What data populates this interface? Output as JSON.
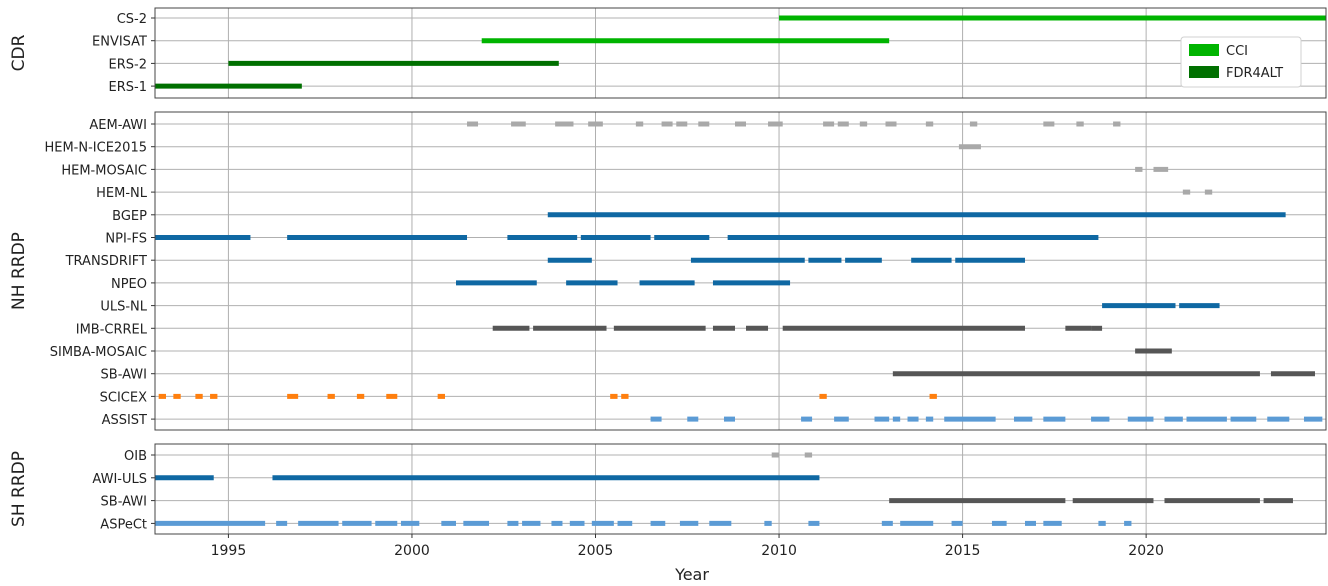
{
  "chart_data": {
    "type": "timeline",
    "xlabel": "Year",
    "xlim": [
      1993.0,
      2024.9
    ],
    "xticks": [
      1995,
      2000,
      2005,
      2010,
      2015,
      2020
    ],
    "grid": true,
    "colors": {
      "cci": "#00b400",
      "fdr4alt": "#007000",
      "blue": "#0f68a3",
      "grey": "#565656",
      "lightgrey": "#a9a9a9",
      "orange": "#ff7f0e",
      "lightblue": "#5b9bd5"
    },
    "legend": {
      "placement": "top-right",
      "entries": [
        {
          "label": "CCI",
          "color": "#00b400"
        },
        {
          "label": "FDR4ALT",
          "color": "#007000"
        }
      ]
    },
    "panels": [
      {
        "ylabel": "CDR",
        "rows": [
          {
            "label": "CS-2",
            "color": "#00b400",
            "segments": [
              [
                2010.0,
                2024.9
              ]
            ]
          },
          {
            "label": "ENVISAT",
            "color": "#00b400",
            "segments": [
              [
                2001.9,
                2013.0
              ]
            ]
          },
          {
            "label": "ERS-2",
            "color": "#007000",
            "segments": [
              [
                1995.0,
                2004.0
              ]
            ]
          },
          {
            "label": "ERS-1",
            "color": "#007000",
            "segments": [
              [
                1993.0,
                1997.0
              ]
            ]
          }
        ]
      },
      {
        "ylabel": "NH RRDP",
        "rows": [
          {
            "label": "AEM-AWI",
            "color": "#a9a9a9",
            "segments": [
              [
                2001.5,
                2001.8
              ],
              [
                2002.7,
                2003.1
              ],
              [
                2003.9,
                2004.4
              ],
              [
                2004.8,
                2005.2
              ],
              [
                2006.1,
                2006.3
              ],
              [
                2006.8,
                2007.1
              ],
              [
                2007.2,
                2007.5
              ],
              [
                2007.8,
                2008.1
              ],
              [
                2008.8,
                2009.1
              ],
              [
                2009.7,
                2010.1
              ],
              [
                2011.2,
                2011.5
              ],
              [
                2011.6,
                2011.9
              ],
              [
                2012.2,
                2012.4
              ],
              [
                2012.9,
                2013.2
              ],
              [
                2014.0,
                2014.2
              ],
              [
                2015.2,
                2015.4
              ],
              [
                2017.2,
                2017.5
              ],
              [
                2018.1,
                2018.3
              ],
              [
                2019.1,
                2019.3
              ]
            ]
          },
          {
            "label": "HEM-N-ICE2015",
            "color": "#a9a9a9",
            "segments": [
              [
                2014.9,
                2015.5
              ]
            ]
          },
          {
            "label": "HEM-MOSAIC",
            "color": "#a9a9a9",
            "segments": [
              [
                2019.7,
                2019.9
              ],
              [
                2020.2,
                2020.6
              ]
            ]
          },
          {
            "label": "HEM-NL",
            "color": "#a9a9a9",
            "segments": [
              [
                2021.0,
                2021.2
              ],
              [
                2021.6,
                2021.8
              ]
            ]
          },
          {
            "label": "BGEP",
            "color": "#0f68a3",
            "segments": [
              [
                2003.7,
                2023.8
              ]
            ]
          },
          {
            "label": "NPI-FS",
            "color": "#0f68a3",
            "segments": [
              [
                1993.0,
                1995.6
              ],
              [
                1996.6,
                2001.5
              ],
              [
                2002.6,
                2004.5
              ],
              [
                2004.6,
                2006.5
              ],
              [
                2006.6,
                2008.1
              ],
              [
                2008.6,
                2018.7
              ]
            ]
          },
          {
            "label": "TRANSDRIFT",
            "color": "#0f68a3",
            "segments": [
              [
                2003.7,
                2004.9
              ],
              [
                2007.6,
                2010.7
              ],
              [
                2010.8,
                2011.7
              ],
              [
                2011.8,
                2012.8
              ],
              [
                2013.6,
                2014.7
              ],
              [
                2014.8,
                2016.7
              ]
            ]
          },
          {
            "label": "NPEO",
            "color": "#0f68a3",
            "segments": [
              [
                2001.2,
                2003.4
              ],
              [
                2004.2,
                2005.6
              ],
              [
                2006.2,
                2007.7
              ],
              [
                2008.2,
                2010.3
              ]
            ]
          },
          {
            "label": "ULS-NL",
            "color": "#0f68a3",
            "segments": [
              [
                2018.8,
                2020.8
              ],
              [
                2020.9,
                2022.0
              ]
            ]
          },
          {
            "label": "IMB-CRREL",
            "color": "#565656",
            "segments": [
              [
                2002.2,
                2003.2
              ],
              [
                2003.3,
                2005.3
              ],
              [
                2005.5,
                2008.0
              ],
              [
                2008.2,
                2008.8
              ],
              [
                2009.1,
                2009.7
              ],
              [
                2010.1,
                2016.7
              ],
              [
                2017.8,
                2018.5
              ],
              [
                2018.5,
                2018.8
              ]
            ]
          },
          {
            "label": "SIMBA-MOSAIC",
            "color": "#565656",
            "segments": [
              [
                2019.7,
                2020.7
              ]
            ]
          },
          {
            "label": "SB-AWI",
            "color": "#565656",
            "segments": [
              [
                2013.1,
                2023.1
              ],
              [
                2023.4,
                2024.6
              ]
            ]
          },
          {
            "label": "SCICEX",
            "color": "#ff7f0e",
            "segments": [
              [
                1993.1,
                1993.3
              ],
              [
                1993.5,
                1993.7
              ],
              [
                1994.1,
                1994.3
              ],
              [
                1994.5,
                1994.7
              ],
              [
                1996.6,
                1996.9
              ],
              [
                1997.7,
                1997.9
              ],
              [
                1998.5,
                1998.7
              ],
              [
                1999.3,
                1999.6
              ],
              [
                2000.7,
                2000.9
              ],
              [
                2005.4,
                2005.6
              ],
              [
                2005.7,
                2005.9
              ],
              [
                2011.1,
                2011.3
              ],
              [
                2014.1,
                2014.3
              ]
            ]
          },
          {
            "label": "ASSIST",
            "color": "#5b9bd5",
            "segments": [
              [
                2006.5,
                2006.8
              ],
              [
                2007.5,
                2007.8
              ],
              [
                2008.5,
                2008.8
              ],
              [
                2010.6,
                2010.9
              ],
              [
                2011.5,
                2011.9
              ],
              [
                2012.6,
                2013.0
              ],
              [
                2013.1,
                2013.3
              ],
              [
                2013.5,
                2013.8
              ],
              [
                2014.0,
                2014.2
              ],
              [
                2014.5,
                2015.9
              ],
              [
                2016.4,
                2016.9
              ],
              [
                2017.2,
                2017.8
              ],
              [
                2018.5,
                2019.0
              ],
              [
                2019.5,
                2020.2
              ],
              [
                2020.5,
                2021.0
              ],
              [
                2021.1,
                2022.2
              ],
              [
                2022.3,
                2023.0
              ],
              [
                2023.3,
                2023.9
              ],
              [
                2024.3,
                2024.8
              ]
            ]
          }
        ]
      },
      {
        "ylabel": "SH RRDP",
        "rows": [
          {
            "label": "OIB",
            "color": "#a9a9a9",
            "segments": [
              [
                2009.8,
                2010.0
              ],
              [
                2010.7,
                2010.9
              ]
            ]
          },
          {
            "label": "AWI-ULS",
            "color": "#0f68a3",
            "segments": [
              [
                1993.0,
                1994.6
              ],
              [
                1996.2,
                2011.1
              ]
            ]
          },
          {
            "label": "SB-AWI",
            "color": "#565656",
            "segments": [
              [
                2013.0,
                2017.8
              ],
              [
                2018.0,
                2020.2
              ],
              [
                2020.5,
                2023.1
              ],
              [
                2023.2,
                2024.0
              ]
            ]
          },
          {
            "label": "ASPeCt",
            "color": "#5b9bd5",
            "segments": [
              [
                1993.0,
                1996.0
              ],
              [
                1996.3,
                1996.6
              ],
              [
                1996.9,
                1998.0
              ],
              [
                1998.1,
                1998.9
              ],
              [
                1999.0,
                1999.6
              ],
              [
                1999.7,
                2000.2
              ],
              [
                2000.8,
                2001.2
              ],
              [
                2001.4,
                2002.1
              ],
              [
                2002.6,
                2002.9
              ],
              [
                2003.0,
                2003.5
              ],
              [
                2003.8,
                2004.1
              ],
              [
                2004.3,
                2004.7
              ],
              [
                2004.9,
                2005.5
              ],
              [
                2005.6,
                2006.0
              ],
              [
                2006.5,
                2006.9
              ],
              [
                2007.3,
                2007.8
              ],
              [
                2008.1,
                2008.7
              ],
              [
                2009.6,
                2009.8
              ],
              [
                2010.8,
                2011.1
              ],
              [
                2012.8,
                2013.1
              ],
              [
                2013.3,
                2014.2
              ],
              [
                2014.7,
                2015.0
              ],
              [
                2015.8,
                2016.2
              ],
              [
                2016.7,
                2017.0
              ],
              [
                2017.2,
                2017.7
              ],
              [
                2018.7,
                2018.9
              ],
              [
                2019.4,
                2019.6
              ]
            ]
          }
        ]
      }
    ]
  }
}
